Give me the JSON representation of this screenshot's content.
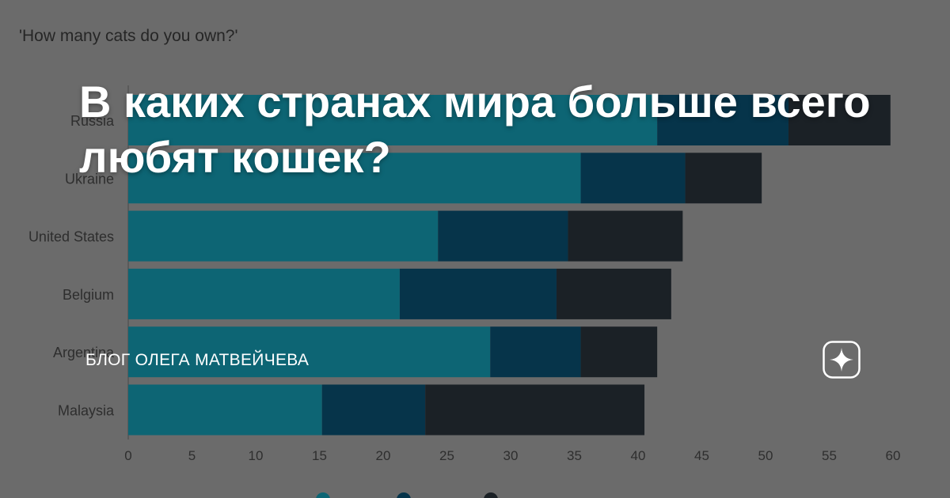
{
  "headline": "В каких странах мира больше всего любят кошек?",
  "blog_name": "БЛОГ ОЛЕГА МАТВЕЙЧЕВА",
  "brand_icon": "zen-star-icon",
  "chart_data": {
    "type": "bar",
    "orientation": "horizontal",
    "stacked": true,
    "title": "'How many cats do you own?'",
    "categories": [
      "Russia",
      "Ukraine",
      "United States",
      "Belgium",
      "Argentina",
      "Malaysia"
    ],
    "series": [
      {
        "color": "#0d6574",
        "values": [
          41.5,
          35.5,
          24.3,
          21.3,
          28.4,
          15.2
        ]
      },
      {
        "color": "#06344a",
        "values": [
          10.3,
          8.2,
          10.2,
          12.3,
          7.1,
          8.1
        ]
      },
      {
        "color": "#1b2126",
        "values": [
          8.0,
          6.0,
          9.0,
          9.0,
          6.0,
          17.2
        ]
      }
    ],
    "xlim": [
      0,
      60
    ],
    "x_ticks": [
      "0",
      "5",
      "10",
      "15",
      "20",
      "25",
      "30",
      "35",
      "40",
      "45",
      "50",
      "55",
      "60"
    ],
    "grid": false,
    "legend": "bottom"
  }
}
